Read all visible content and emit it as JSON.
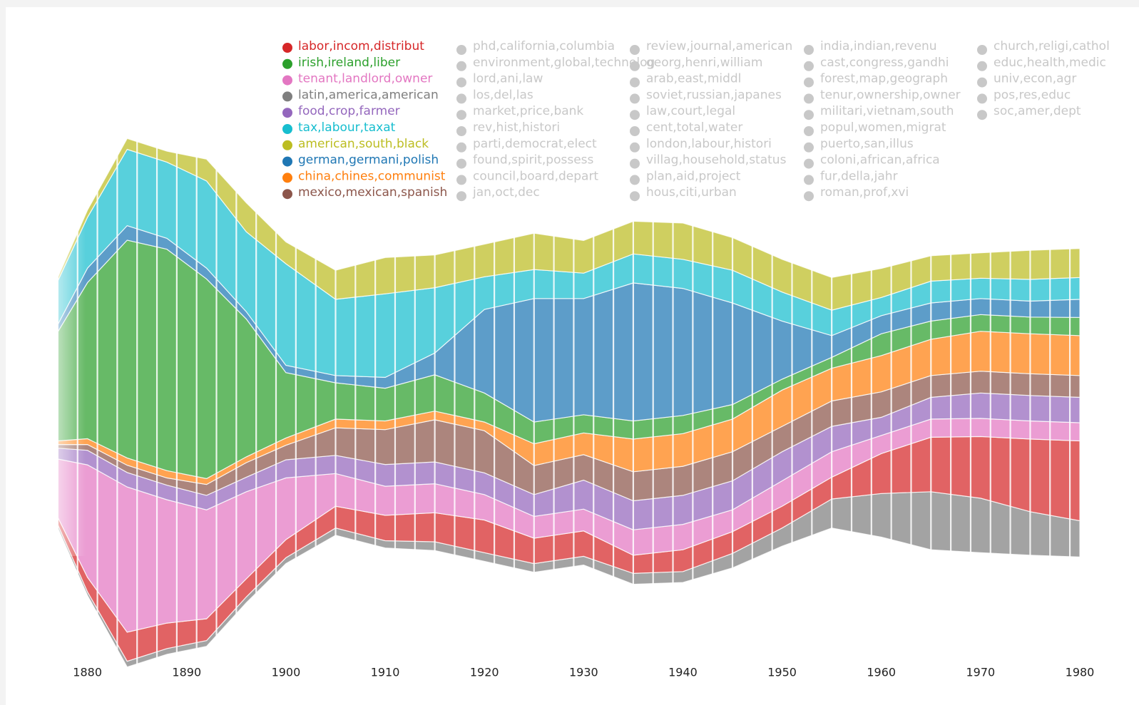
{
  "chart_data": {
    "type": "streamgraph",
    "x": [
      1877,
      1880,
      1884,
      1888,
      1892,
      1896,
      1900,
      1905,
      1910,
      1915,
      1920,
      1925,
      1930,
      1935,
      1940,
      1945,
      1950,
      1955,
      1960,
      1965,
      1970,
      1975,
      1980
    ],
    "xlim": [
      1876,
      1980
    ],
    "xticks": [
      1880,
      1890,
      1900,
      1910,
      1920,
      1930,
      1940,
      1950,
      1960,
      1970,
      1980
    ],
    "series": [
      {
        "name": "labor,incom,distribut",
        "color": "#d62728",
        "values": [
          10,
          20,
          40,
          35,
          30,
          25,
          25,
          30,
          35,
          40,
          45,
          35,
          35,
          25,
          30,
          30,
          30,
          30,
          55,
          75,
          85,
          100,
          110
        ]
      },
      {
        "name": "irish,ireland,liber",
        "color": "#2ca02c",
        "values": [
          150,
          215,
          300,
          305,
          275,
          190,
          90,
          50,
          45,
          50,
          40,
          30,
          25,
          25,
          25,
          20,
          15,
          15,
          30,
          25,
          23,
          23,
          25
        ]
      },
      {
        "name": "tenant,landlord,owner",
        "color": "#e377c2",
        "values": [
          80,
          155,
          200,
          170,
          150,
          120,
          85,
          45,
          40,
          40,
          35,
          30,
          30,
          35,
          35,
          30,
          35,
          35,
          25,
          25,
          25,
          25,
          25
        ]
      },
      {
        "name": "latin,america,american",
        "color": "#7f7f7f",
        "values": [
          5,
          5,
          8,
          8,
          8,
          8,
          8,
          10,
          10,
          12,
          12,
          12,
          12,
          15,
          15,
          20,
          25,
          40,
          60,
          80,
          75,
          60,
          50
        ]
      },
      {
        "name": "food,crop,farmer",
        "color": "#9467bd",
        "values": [
          15,
          20,
          20,
          20,
          20,
          20,
          25,
          25,
          30,
          30,
          30,
          30,
          40,
          40,
          40,
          40,
          40,
          35,
          25,
          30,
          35,
          35,
          35
        ]
      },
      {
        "name": "tax,labour,taxat",
        "color": "#17becf",
        "values": [
          60,
          70,
          105,
          105,
          120,
          110,
          140,
          105,
          115,
          90,
          45,
          40,
          35,
          40,
          40,
          45,
          40,
          35,
          25,
          30,
          28,
          30,
          30
        ]
      },
      {
        "name": "american,south,black",
        "color": "#bcbd22",
        "values": [
          5,
          10,
          15,
          15,
          30,
          40,
          30,
          40,
          50,
          45,
          45,
          50,
          45,
          45,
          50,
          45,
          45,
          45,
          40,
          35,
          35,
          40,
          40
        ]
      },
      {
        "name": "german,germani,polish",
        "color": "#1f77b4",
        "values": [
          10,
          20,
          20,
          15,
          15,
          10,
          10,
          10,
          15,
          30,
          115,
          170,
          160,
          190,
          175,
          140,
          80,
          30,
          25,
          25,
          22,
          22,
          25
        ]
      },
      {
        "name": "china,chines,communist",
        "color": "#ff7f0e",
        "values": [
          5,
          8,
          10,
          10,
          8,
          8,
          10,
          12,
          12,
          12,
          12,
          30,
          30,
          45,
          45,
          45,
          50,
          45,
          50,
          50,
          55,
          55,
          55
        ]
      },
      {
        "name": "mexico,mexican,spanish",
        "color": "#8c564b",
        "values": [
          5,
          8,
          10,
          10,
          15,
          20,
          20,
          38,
          48,
          58,
          58,
          40,
          35,
          40,
          40,
          40,
          35,
          35,
          35,
          30,
          30,
          30,
          30
        ]
      }
    ],
    "inactive_topics": [
      [
        "phd,california,columbia",
        "environment,global,technolog",
        "lord,ani,law",
        "los,del,las",
        "market,price,bank",
        "rev,hist,histori",
        "parti,democrat,elect",
        "found,spirit,possess",
        "council,board,depart",
        "jan,oct,dec"
      ],
      [
        "review,journal,american",
        "georg,henri,william",
        "arab,east,middl",
        "soviet,russian,japanes",
        "law,court,legal",
        "cent,total,water",
        "london,labour,histori",
        "villag,household,status",
        "plan,aid,project",
        "hous,citi,urban"
      ],
      [
        "india,indian,revenu",
        "cast,congress,gandhi",
        "forest,map,geograph",
        "tenur,ownership,owner",
        "militari,vietnam,south",
        "popul,women,migrat",
        "puerto,san,illus",
        "coloni,african,africa",
        "fur,della,jahr",
        "roman,prof,xvi"
      ],
      [
        "church,religi,cathol",
        "educ,health,medic",
        "univ,econ,agr",
        "pos,res,educ",
        "soc,amer,dept"
      ]
    ],
    "inactive_color": "#c8c8c8"
  }
}
